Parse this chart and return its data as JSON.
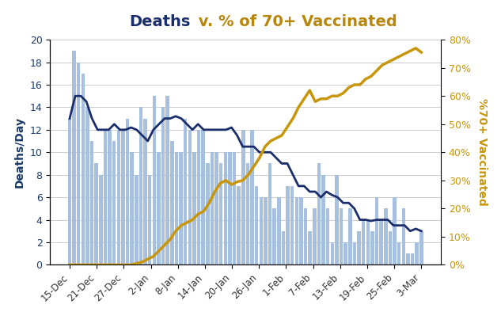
{
  "title_deaths": "Deaths",
  "title_rest": " v. % of 70+ Vaccinated",
  "ylabel_left": "Deaths/Day",
  "ylabel_right": "%70+ Vaccinated",
  "ylim_left": [
    0,
    20
  ],
  "ylim_right": [
    0,
    0.8
  ],
  "yticks_left": [
    0,
    2,
    4,
    6,
    8,
    10,
    12,
    14,
    16,
    18,
    20
  ],
  "yticks_right": [
    0.0,
    0.1,
    0.2,
    0.3,
    0.4,
    0.5,
    0.6,
    0.7,
    0.8
  ],
  "bar_color": "#a8c0e0",
  "line_color": "#1a2e6b",
  "vacc_color": "#c8960a",
  "background_color": "#ffffff",
  "x_labels": [
    "15-Dec",
    "21-Dec",
    "27-Dec",
    "2-Jan",
    "8-Jan",
    "14-Jan",
    "20-Jan",
    "26-Jan",
    "1-Feb",
    "7-Feb",
    "13-Feb",
    "19-Feb",
    "25-Feb",
    "3-Mar"
  ],
  "bar_values": [
    13,
    19,
    18,
    17,
    14,
    11,
    9,
    8,
    12,
    12,
    11,
    12,
    12,
    13,
    10,
    8,
    14,
    13,
    8,
    15,
    10,
    14,
    15,
    11,
    10,
    10,
    13,
    12,
    10,
    12,
    12,
    9,
    10,
    10,
    9,
    10,
    10,
    10,
    7,
    12,
    9,
    12,
    7,
    6,
    6,
    9,
    5,
    6,
    3,
    7,
    7,
    6,
    6,
    5,
    3,
    5,
    9,
    8,
    5,
    2,
    8,
    5,
    2,
    5,
    2,
    3,
    4,
    4,
    3,
    6,
    4,
    5,
    3,
    6,
    2,
    5,
    1,
    1,
    2,
    3
  ],
  "line_values": [
    13,
    15,
    15,
    14.5,
    13,
    12,
    12,
    12,
    12.5,
    12,
    12,
    12.2,
    12,
    11.5,
    11,
    12,
    12.5,
    13,
    13,
    13.2,
    13,
    12.5,
    12,
    12.5,
    12,
    12,
    12,
    12,
    12,
    12.2,
    11.5,
    10.5,
    10.5,
    10.5,
    10,
    10,
    10,
    9.5,
    9,
    9,
    8,
    7,
    7,
    6.5,
    6.5,
    6,
    6.5,
    6.2,
    6,
    5.5,
    5.5,
    5,
    4,
    4,
    3.9,
    4,
    4,
    4,
    3.5,
    3.5,
    3.5,
    3,
    3.2,
    3
  ],
  "vacc_values": [
    0,
    0,
    0,
    0,
    0,
    0,
    0,
    0,
    0,
    0,
    0,
    0,
    0.005,
    0.01,
    0.02,
    0.03,
    0.05,
    0.07,
    0.09,
    0.12,
    0.14,
    0.15,
    0.16,
    0.18,
    0.19,
    0.22,
    0.26,
    0.29,
    0.3,
    0.285,
    0.295,
    0.3,
    0.32,
    0.35,
    0.38,
    0.42,
    0.44,
    0.45,
    0.46,
    0.49,
    0.52,
    0.56,
    0.59,
    0.62,
    0.58,
    0.59,
    0.59,
    0.6,
    0.6,
    0.61,
    0.63,
    0.64,
    0.64,
    0.66,
    0.67,
    0.69,
    0.71,
    0.72,
    0.73,
    0.74,
    0.75,
    0.76,
    0.77,
    0.755
  ]
}
